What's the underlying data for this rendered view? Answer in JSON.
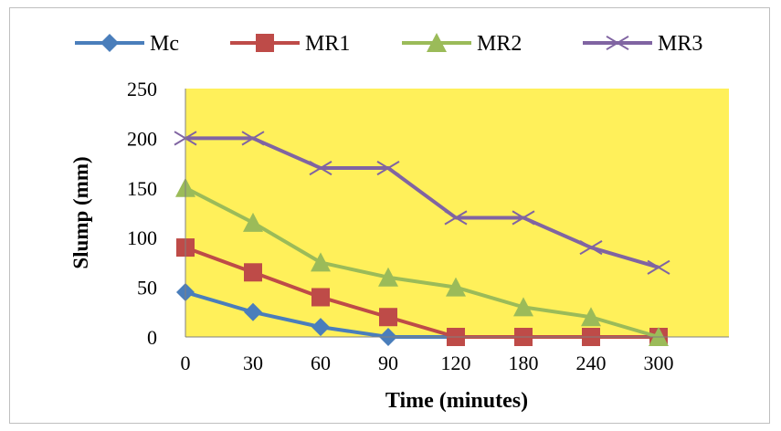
{
  "chart_data": {
    "type": "line",
    "title": "",
    "xlabel": "Time (minutes)",
    "ylabel": "Slump (mm)",
    "categories": [
      "0",
      "30",
      "60",
      "90",
      "120",
      "180",
      "240",
      "300"
    ],
    "ylim": [
      0,
      250
    ],
    "yticks": [
      0,
      50,
      100,
      150,
      200,
      250
    ],
    "grid": false,
    "legend_position": "top",
    "plot_background": "#FFF05A",
    "series": [
      {
        "name": "Mc",
        "color": "#4A7EBB",
        "marker": "diamond",
        "values": [
          45,
          25,
          10,
          0,
          0,
          null,
          null,
          null
        ]
      },
      {
        "name": "MR1",
        "color": "#BE4B48",
        "marker": "square",
        "values": [
          90,
          65,
          40,
          20,
          0,
          0,
          0,
          0
        ]
      },
      {
        "name": "MR2",
        "color": "#9BBB59",
        "marker": "triangle",
        "values": [
          150,
          115,
          75,
          60,
          50,
          30,
          20,
          0
        ]
      },
      {
        "name": "MR3",
        "color": "#8064A2",
        "marker": "x",
        "values": [
          200,
          200,
          170,
          170,
          120,
          120,
          90,
          70
        ]
      }
    ]
  }
}
